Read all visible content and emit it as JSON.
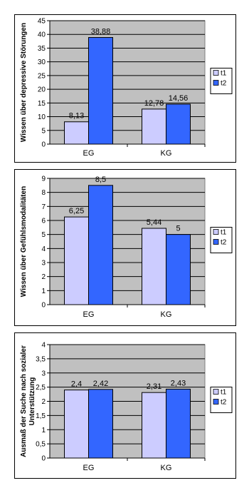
{
  "colors": {
    "t1": "#ccccff",
    "t2": "#3366ff",
    "plot_bg": "#c0c0c0"
  },
  "chart_data": [
    {
      "type": "bar",
      "categories": [
        "EG",
        "KG"
      ],
      "series": [
        {
          "name": "t1",
          "values": [
            8.13,
            12.78
          ],
          "labels": [
            "8,13",
            "12,78"
          ]
        },
        {
          "name": "t2",
          "values": [
            38.88,
            14.56
          ],
          "labels": [
            "38,88",
            "14,56"
          ]
        }
      ],
      "ylabel": [
        "Wissen über depressive Störungen"
      ],
      "ylim": [
        0,
        45
      ],
      "yticks": [
        0,
        5,
        10,
        15,
        20,
        25,
        30,
        35,
        40,
        45
      ],
      "yticklabels": [
        "0",
        "5",
        "10",
        "15",
        "20",
        "25",
        "30",
        "35",
        "40",
        "45"
      ],
      "grid": true,
      "legend": "right"
    },
    {
      "type": "bar",
      "categories": [
        "EG",
        "KG"
      ],
      "series": [
        {
          "name": "t1",
          "values": [
            6.25,
            5.44
          ],
          "labels": [
            "6,25",
            "5,44"
          ]
        },
        {
          "name": "t2",
          "values": [
            8.5,
            5
          ],
          "labels": [
            "8,5",
            "5"
          ]
        }
      ],
      "ylabel": [
        "Wissen über Gefühlsmodalitäten"
      ],
      "ylim": [
        0,
        9
      ],
      "yticks": [
        0,
        1,
        2,
        3,
        4,
        5,
        6,
        7,
        8,
        9
      ],
      "yticklabels": [
        "0",
        "1",
        "2",
        "3",
        "4",
        "5",
        "6",
        "7",
        "8",
        "9"
      ],
      "grid": true,
      "legend": "right"
    },
    {
      "type": "bar",
      "categories": [
        "EG",
        "KG"
      ],
      "series": [
        {
          "name": "t1",
          "values": [
            2.4,
            2.31
          ],
          "labels": [
            "2,4",
            "2,31"
          ]
        },
        {
          "name": "t2",
          "values": [
            2.42,
            2.43
          ],
          "labels": [
            "2,42",
            "2,43"
          ]
        }
      ],
      "ylabel": [
        "Ausmaß der Suche nach sozialer",
        "Unterstützung"
      ],
      "ylim": [
        0,
        4
      ],
      "yticks": [
        0,
        0.5,
        1,
        1.5,
        2,
        2.5,
        3,
        3.5,
        4
      ],
      "yticklabels": [
        "0",
        "0,5",
        "1",
        "1,5",
        "2",
        "2,5",
        "3",
        "3,5",
        "4"
      ],
      "grid": true,
      "legend": "right"
    }
  ]
}
